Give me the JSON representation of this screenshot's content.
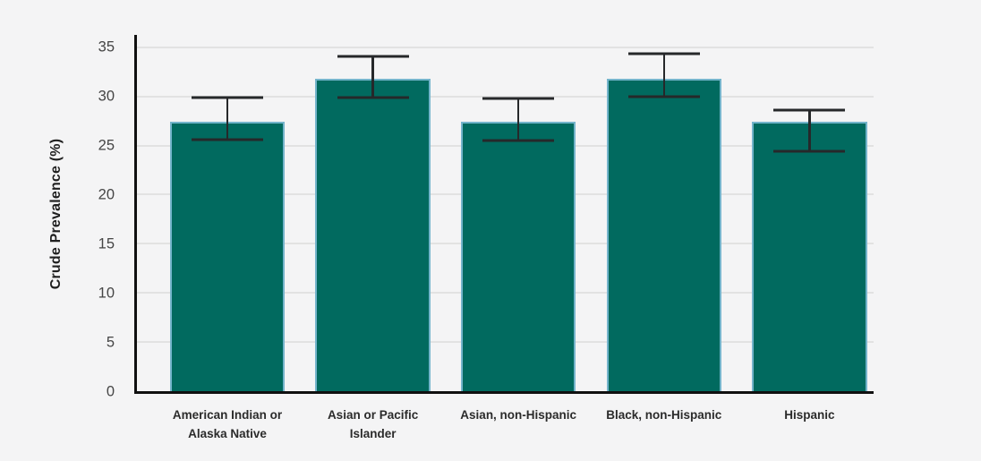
{
  "chart_data": {
    "type": "bar",
    "ylabel": "Crude Prevalence (%)",
    "xlabel": "",
    "categories": [
      "American Indian or Alaska Native",
      "Asian or Pacific Islander",
      "Asian, non-Hispanic",
      "Black, non-Hispanic",
      "Hispanic"
    ],
    "series": [
      {
        "name": "Crude Prevalence (%)",
        "values": [
          27.4,
          31.8,
          27.4,
          31.8,
          27.4
        ],
        "error_low": [
          25.6,
          29.9,
          25.5,
          30.0,
          24.4
        ],
        "error_high": [
          29.9,
          34.1,
          29.8,
          34.3,
          28.6
        ]
      }
    ],
    "ylim": [
      0,
      36.25
    ],
    "yticks": [
      0,
      5,
      10,
      15,
      20,
      25,
      30,
      35
    ],
    "grid": true,
    "legend_position": "none",
    "colors": {
      "bar_fill": "#016a5f",
      "bar_border": "#74b4cb",
      "error_bar": "#26282a",
      "axis_line": "#101010",
      "gridline": "#e2e2e2",
      "background": "#f4f4f5",
      "tick_label": "#454545",
      "category_label": "#2b2b2b"
    }
  }
}
